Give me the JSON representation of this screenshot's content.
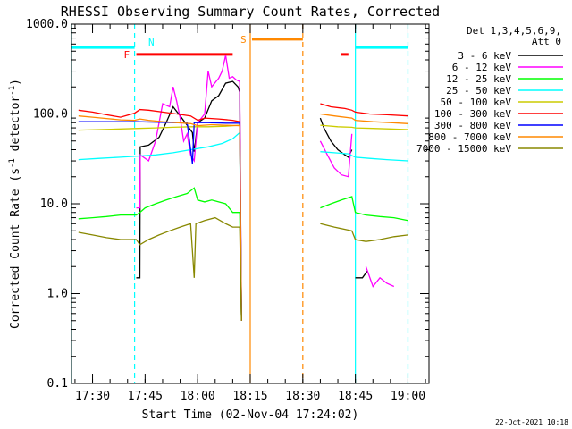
{
  "chart_data": {
    "type": "line",
    "title": "RHESSI Observing Summary Count Rates, Corrected",
    "xlabel": "Start Time (02-Nov-04 17:24:02)",
    "ylabel": "Corrected Count Rate (s⁻¹ detector⁻¹)",
    "ylabel_parts": [
      "Corrected Count Rate (s",
      "-1",
      " detector",
      "-1",
      ")"
    ],
    "yscale": "log",
    "ylim": [
      0.1,
      1000
    ],
    "xlim_minutes": [
      0,
      102
    ],
    "y_ticks": [
      {
        "value": 0.1,
        "label": "0.1"
      },
      {
        "value": 1,
        "label": "1.0"
      },
      {
        "value": 10,
        "label": "10.0"
      },
      {
        "value": 100,
        "label": "100.0"
      },
      {
        "value": 1000,
        "label": "1000.0"
      }
    ],
    "x_ticks": [
      {
        "minutes": 6,
        "label": "17:30"
      },
      {
        "minutes": 21,
        "label": "17:45"
      },
      {
        "minutes": 36,
        "label": "18:00"
      },
      {
        "minutes": 51,
        "label": "18:15"
      },
      {
        "minutes": 66,
        "label": "18:30"
      },
      {
        "minutes": 81,
        "label": "18:45"
      },
      {
        "minutes": 96,
        "label": "19:00"
      }
    ],
    "legend": {
      "header": [
        "Det 1,3,4,5,6,9,",
        "Att 0"
      ],
      "placement": "right"
    },
    "series": [
      {
        "name": "3 - 6 keV",
        "color": "#000000",
        "points": [
          [
            18.5,
            1.5
          ],
          [
            19.5,
            1.5
          ],
          [
            19.6,
            43
          ],
          [
            22,
            45
          ],
          [
            25,
            55
          ],
          [
            27,
            80
          ],
          [
            29,
            120
          ],
          [
            31,
            95
          ],
          [
            33,
            75
          ],
          [
            34.5,
            62
          ],
          [
            35,
            38
          ],
          [
            36,
            80
          ],
          [
            38,
            90
          ],
          [
            40,
            140
          ],
          [
            42,
            160
          ],
          [
            44,
            220
          ],
          [
            46,
            230
          ],
          [
            47.5,
            200
          ],
          [
            48,
            175
          ],
          [
            48.5,
            0.5
          ]
        ]
      },
      {
        "name": "6 - 12 keV",
        "color": "#ff00ff",
        "points": [
          [
            18.5,
            9
          ],
          [
            19.5,
            9
          ],
          [
            19.6,
            35
          ],
          [
            22,
            30
          ],
          [
            24,
            50
          ],
          [
            26,
            130
          ],
          [
            28,
            120
          ],
          [
            29,
            200
          ],
          [
            30,
            140
          ],
          [
            31,
            90
          ],
          [
            32,
            50
          ],
          [
            33,
            60
          ],
          [
            34,
            35
          ],
          [
            35,
            30
          ],
          [
            36,
            80
          ],
          [
            38,
            100
          ],
          [
            39,
            300
          ],
          [
            40,
            200
          ],
          [
            42,
            250
          ],
          [
            43,
            300
          ],
          [
            44,
            450
          ],
          [
            45,
            250
          ],
          [
            46,
            260
          ],
          [
            47,
            240
          ],
          [
            48,
            230
          ],
          [
            48.5,
            0.5
          ]
        ]
      },
      {
        "name": "12 - 25 keV",
        "color": "#00ff00",
        "points": [
          [
            2,
            6.8
          ],
          [
            6,
            7
          ],
          [
            10,
            7.2
          ],
          [
            14,
            7.5
          ],
          [
            18.5,
            7.5
          ],
          [
            19.5,
            8
          ],
          [
            21,
            9
          ],
          [
            24,
            10
          ],
          [
            27,
            11
          ],
          [
            30,
            12
          ],
          [
            33,
            13
          ],
          [
            35,
            15
          ],
          [
            36,
            11
          ],
          [
            38,
            10.5
          ],
          [
            40,
            11
          ],
          [
            44,
            10
          ],
          [
            46,
            8
          ],
          [
            48,
            8
          ],
          [
            48.5,
            0.5
          ]
        ]
      },
      {
        "name": "25 - 50 keV",
        "color": "#00ffff",
        "points": [
          [
            2,
            31
          ],
          [
            8,
            32
          ],
          [
            14,
            33
          ],
          [
            19,
            34
          ],
          [
            24,
            35
          ],
          [
            29,
            37
          ],
          [
            34,
            40
          ],
          [
            39,
            43
          ],
          [
            43,
            47
          ],
          [
            46,
            53
          ],
          [
            48,
            62
          ],
          [
            48.5,
            0.5
          ]
        ]
      },
      {
        "name": "50 - 100 keV",
        "color": "#cccc00",
        "points": [
          [
            2,
            66
          ],
          [
            8,
            67
          ],
          [
            14,
            68
          ],
          [
            19,
            69
          ],
          [
            24,
            70
          ],
          [
            29,
            71
          ],
          [
            34,
            72
          ],
          [
            39,
            72
          ],
          [
            44,
            73
          ],
          [
            48,
            75
          ],
          [
            48.5,
            0.5
          ]
        ]
      },
      {
        "name": "100 - 300 keV",
        "color": "#ff0000",
        "points": [
          [
            2,
            110
          ],
          [
            6,
            105
          ],
          [
            10,
            98
          ],
          [
            14,
            92
          ],
          [
            18,
            102
          ],
          [
            19.5,
            112
          ],
          [
            22,
            110
          ],
          [
            26,
            105
          ],
          [
            30,
            100
          ],
          [
            34,
            95
          ],
          [
            36,
            85
          ],
          [
            38,
            90
          ],
          [
            42,
            88
          ],
          [
            46,
            85
          ],
          [
            48,
            82
          ],
          [
            48.5,
            0.5
          ]
        ]
      },
      {
        "name": "300 - 800 keV",
        "color": "#0000ff",
        "points": [
          [
            2,
            82
          ],
          [
            8,
            82
          ],
          [
            14,
            82
          ],
          [
            19,
            82
          ],
          [
            24,
            81
          ],
          [
            29,
            80
          ],
          [
            33,
            80
          ],
          [
            34.5,
            28
          ],
          [
            35,
            80
          ],
          [
            39,
            80
          ],
          [
            44,
            79
          ],
          [
            48,
            79
          ],
          [
            48.5,
            0.5
          ]
        ]
      },
      {
        "name": "800 - 7000 keV",
        "color": "#ff8800",
        "points": [
          [
            2,
            95
          ],
          [
            6,
            92
          ],
          [
            10,
            89
          ],
          [
            14,
            86
          ],
          [
            18,
            85
          ],
          [
            19.5,
            88
          ],
          [
            22,
            85
          ],
          [
            26,
            82
          ],
          [
            30,
            80
          ],
          [
            34,
            78
          ],
          [
            36,
            74
          ],
          [
            40,
            76
          ],
          [
            44,
            75
          ],
          [
            48,
            74
          ],
          [
            48.5,
            0.5
          ]
        ]
      },
      {
        "name": "7000 - 15000 keV",
        "color": "#888800",
        "points": [
          [
            2,
            4.8
          ],
          [
            6,
            4.5
          ],
          [
            10,
            4.2
          ],
          [
            14,
            4
          ],
          [
            18.5,
            4
          ],
          [
            19.5,
            3.5
          ],
          [
            22,
            4
          ],
          [
            25,
            4.5
          ],
          [
            28,
            5
          ],
          [
            31,
            5.5
          ],
          [
            34,
            6
          ],
          [
            35,
            1.5
          ],
          [
            35.5,
            6
          ],
          [
            38,
            6.5
          ],
          [
            41,
            7
          ],
          [
            44,
            6
          ],
          [
            46,
            5.5
          ],
          [
            48,
            5.5
          ],
          [
            48.5,
            0.5
          ]
        ]
      }
    ],
    "gap_segments": [
      {
        "series": "3 - 6 keV",
        "color": "#000000",
        "points": [
          [
            71,
            90
          ],
          [
            72,
            70
          ],
          [
            74,
            50
          ],
          [
            76,
            40
          ],
          [
            78,
            35
          ],
          [
            79,
            33
          ],
          [
            80,
            40
          ]
        ]
      },
      {
        "series": "6 - 12 keV",
        "color": "#ff00ff",
        "points": [
          [
            71,
            50
          ],
          [
            73,
            35
          ],
          [
            75,
            25
          ],
          [
            77,
            21
          ],
          [
            79,
            20
          ],
          [
            80,
            60
          ]
        ]
      },
      {
        "series": "12 - 25 keV",
        "color": "#00ff00",
        "points": [
          [
            71,
            9
          ],
          [
            74,
            10
          ],
          [
            77,
            11
          ],
          [
            80,
            12
          ],
          [
            81,
            8
          ],
          [
            84,
            7.5
          ],
          [
            88,
            7.2
          ],
          [
            92,
            7
          ],
          [
            96,
            6.5
          ]
        ]
      },
      {
        "series": "25 - 50 keV",
        "color": "#00ffff",
        "points": [
          [
            71,
            38
          ],
          [
            75,
            37
          ],
          [
            79,
            36
          ],
          [
            81,
            33
          ],
          [
            85,
            32
          ],
          [
            90,
            31
          ],
          [
            96,
            30
          ]
        ]
      },
      {
        "series": "50 - 100 keV",
        "color": "#cccc00",
        "points": [
          [
            71,
            75
          ],
          [
            76,
            72
          ],
          [
            80,
            71
          ],
          [
            81,
            70
          ],
          [
            86,
            69
          ],
          [
            91,
            68
          ],
          [
            96,
            67
          ]
        ]
      },
      {
        "series": "100 - 300 keV",
        "color": "#ff0000",
        "points": [
          [
            71,
            130
          ],
          [
            74,
            120
          ],
          [
            78,
            115
          ],
          [
            80,
            110
          ],
          [
            81,
            105
          ],
          [
            85,
            100
          ],
          [
            90,
            98
          ],
          [
            96,
            95
          ]
        ]
      },
      {
        "series": "800 - 7000 keV",
        "color": "#ff8800",
        "points": [
          [
            71,
            100
          ],
          [
            75,
            95
          ],
          [
            80,
            90
          ],
          [
            81,
            85
          ],
          [
            86,
            82
          ],
          [
            91,
            80
          ],
          [
            96,
            78
          ]
        ]
      },
      {
        "series": "7000 - 15000 keV",
        "color": "#888800",
        "points": [
          [
            71,
            6
          ],
          [
            75,
            5.5
          ],
          [
            80,
            5
          ],
          [
            81,
            4
          ],
          [
            84,
            3.8
          ],
          [
            88,
            4
          ],
          [
            92,
            4.3
          ],
          [
            96,
            4.5
          ]
        ]
      },
      {
        "series": "3 - 6 keV",
        "color": "#000000",
        "points": [
          [
            81,
            1.5
          ],
          [
            83,
            1.5
          ],
          [
            84.5,
            1.8
          ]
        ]
      },
      {
        "series": "6 - 12 keV",
        "color": "#ff00ff",
        "points": [
          [
            84,
            2
          ],
          [
            86,
            1.2
          ],
          [
            88,
            1.5
          ],
          [
            90,
            1.3
          ],
          [
            92,
            1.2
          ]
        ]
      }
    ],
    "flags": [
      {
        "label": "N",
        "color": "#00ffff",
        "start": 0,
        "end": 18,
        "y": 550
      },
      {
        "label": "",
        "color": "#00ffff",
        "start": 81,
        "end": 96,
        "y": 550
      },
      {
        "label": "F",
        "color": "#ff0000",
        "start": 18.5,
        "end": 46,
        "y": 460
      },
      {
        "label": "",
        "color": "#ff0000",
        "start": 77,
        "end": 79,
        "y": 460
      },
      {
        "label": "S",
        "color": "#ff8800",
        "start": 51.5,
        "end": 66,
        "y": 680
      }
    ],
    "markers": [
      {
        "minutes": 0,
        "color": "#00ffff",
        "style": "solid"
      },
      {
        "minutes": 18,
        "color": "#00ffff",
        "style": "dashed"
      },
      {
        "minutes": 51,
        "color": "#ff8800",
        "style": "solid"
      },
      {
        "minutes": 66,
        "color": "#ff8800",
        "style": "dashed"
      },
      {
        "minutes": 81,
        "color": "#00ffff",
        "style": "solid"
      },
      {
        "minutes": 96,
        "color": "#00ffff",
        "style": "dashed"
      }
    ],
    "grid": false
  },
  "footer": {
    "timestamp": "22-Oct-2021 10:18"
  }
}
